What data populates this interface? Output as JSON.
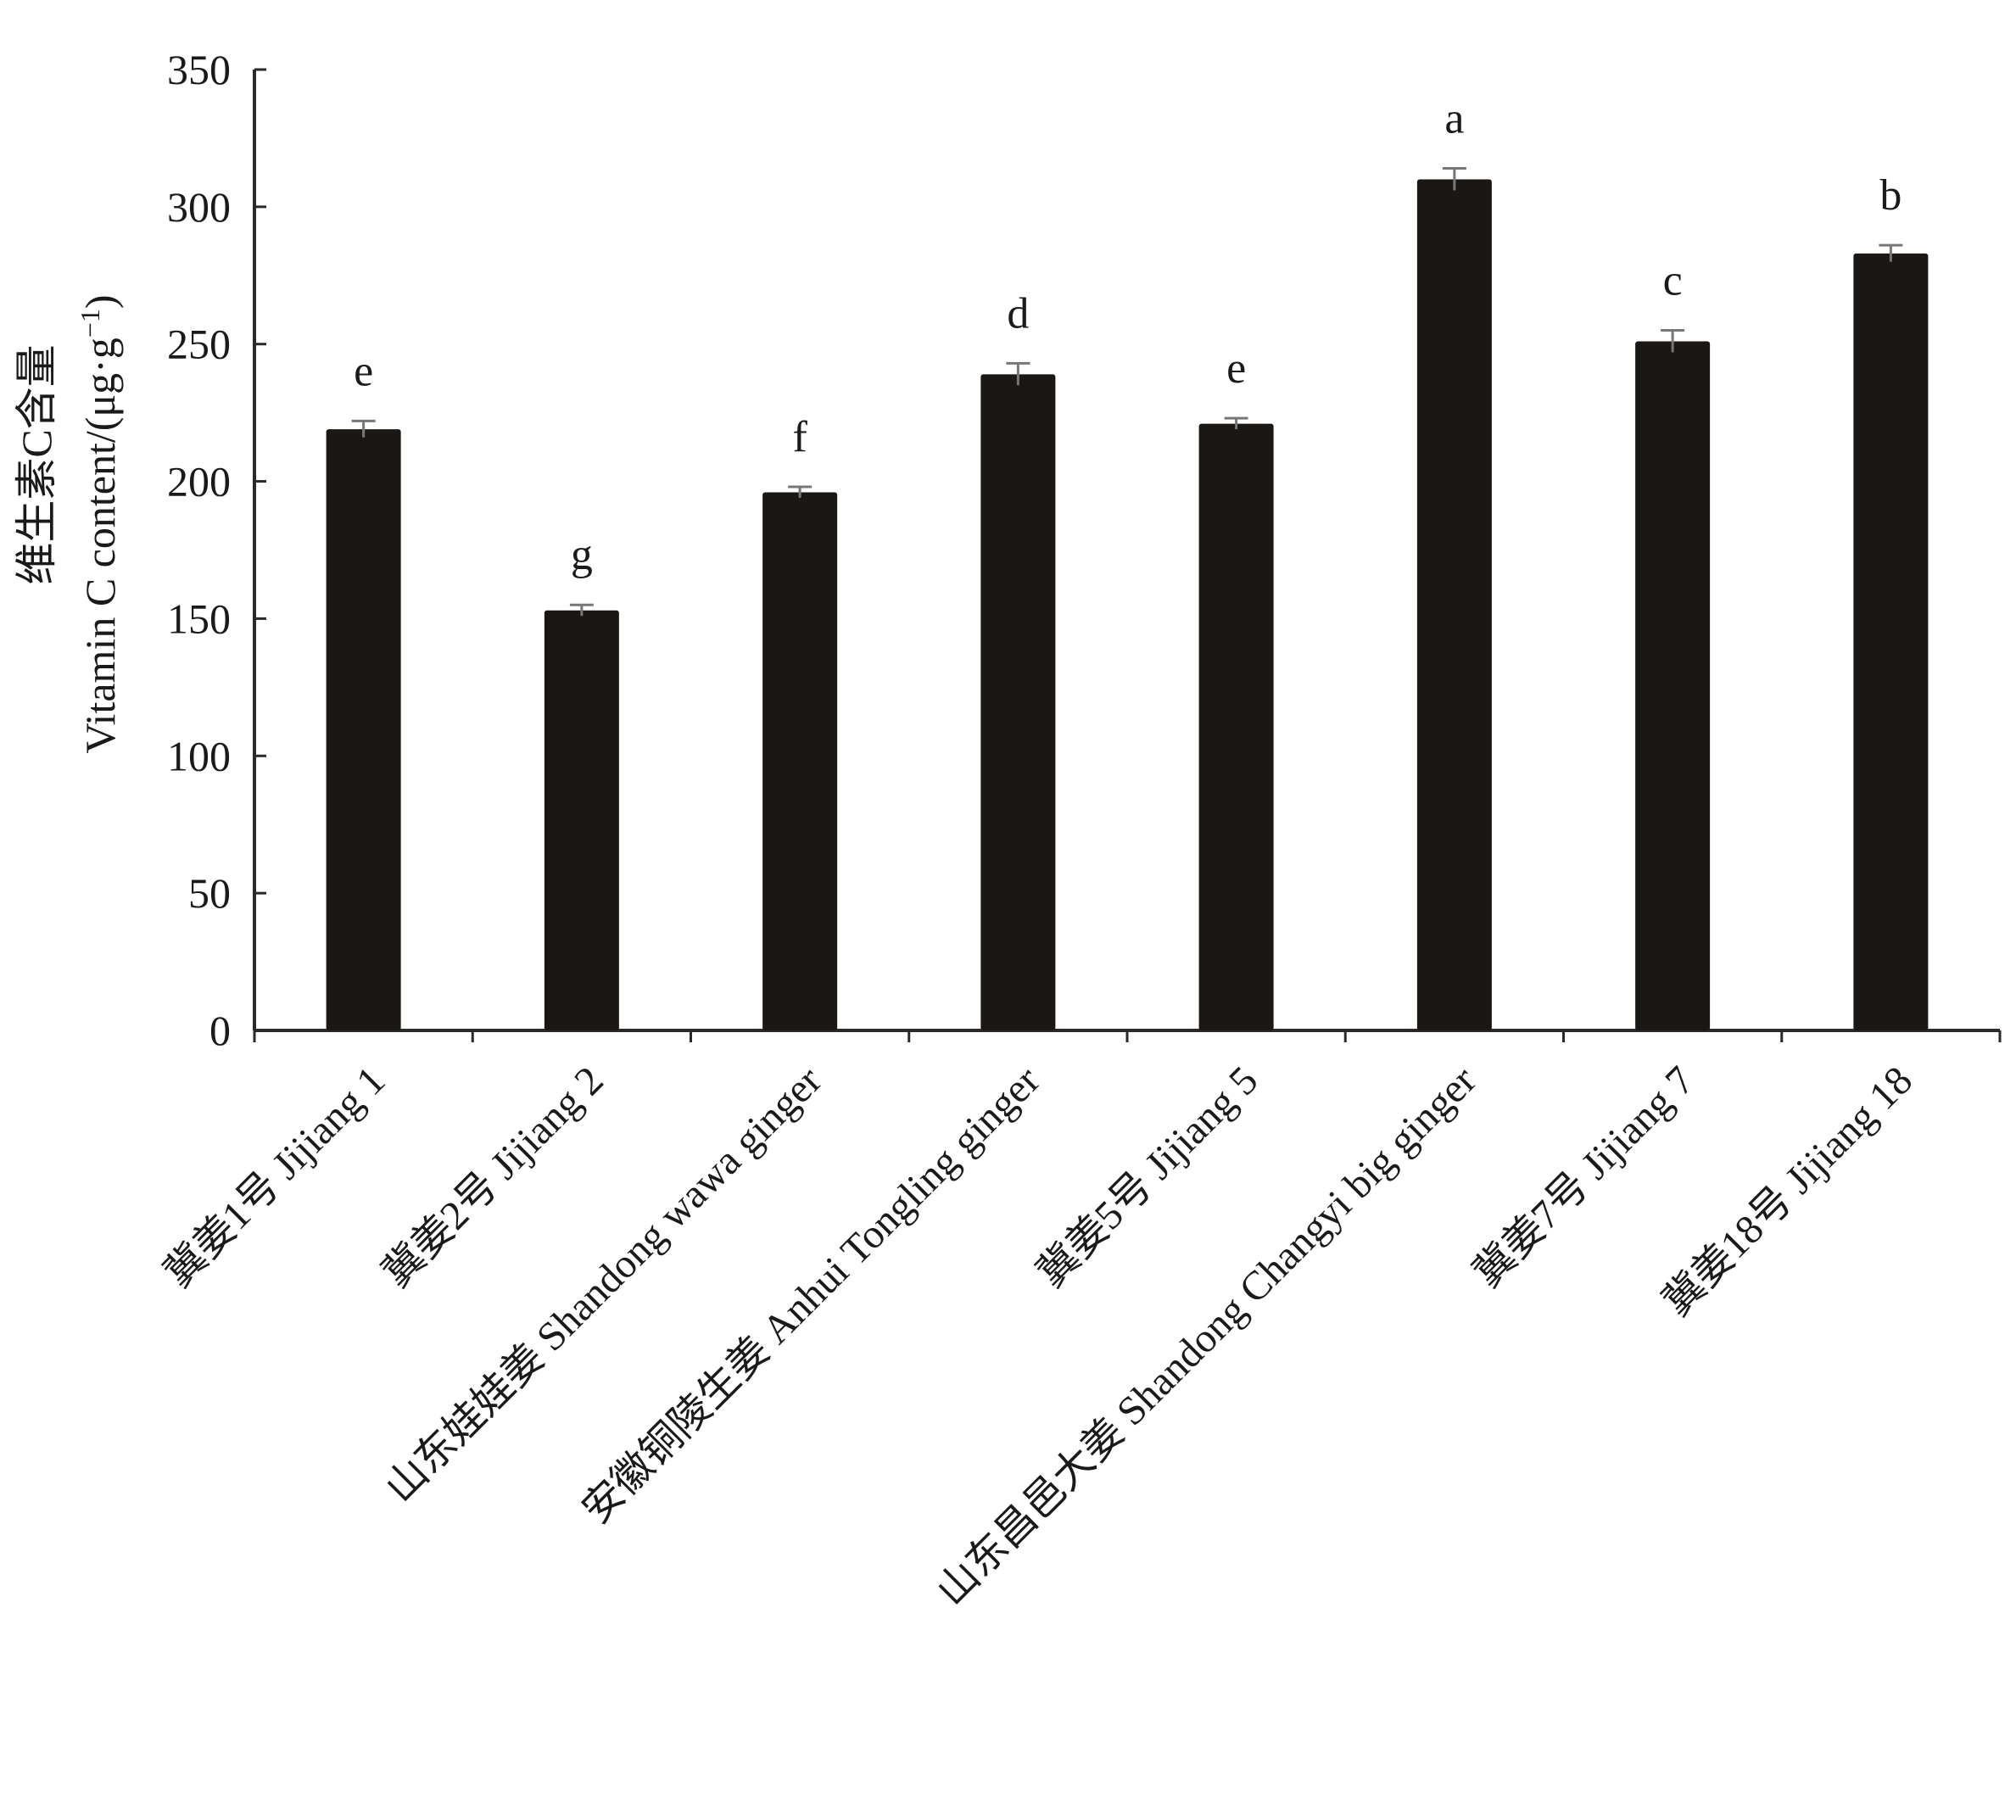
{
  "chart_data": {
    "type": "bar",
    "ylabel_cn": "维生素C含量",
    "ylabel_en": "Vitamin C content/(μg·g",
    "ylabel_sup": "−1",
    "ylabel_close": ")",
    "ylim": [
      0,
      350
    ],
    "yticks": [
      "0",
      "50",
      "100",
      "150",
      "200",
      "250",
      "300",
      "350"
    ],
    "grid": false,
    "categories": [
      "冀姜1号 Jijiang 1",
      "冀姜2号 Jijiang 2",
      "山东娃娃姜 Shandong wawa ginger",
      "安徽铜陵生姜 Anhui Tongling ginger",
      "冀姜5号 Jijiang 5",
      "山东昌邑大姜 Shandong Changyi big ginger",
      "冀姜7号 Jijiang 7",
      "冀姜18号 Jijiang 18"
    ],
    "values": [
      219,
      153,
      196,
      239,
      221,
      310,
      251,
      283
    ],
    "errors": [
      3,
      2,
      2,
      4,
      2,
      4,
      4,
      3
    ],
    "significance": [
      "e",
      "g",
      "f",
      "d",
      "e",
      "a",
      "c",
      "b"
    ],
    "colors": {
      "bar": "#1a1715",
      "axis": "#2a2a2a",
      "error": "#777777"
    }
  }
}
